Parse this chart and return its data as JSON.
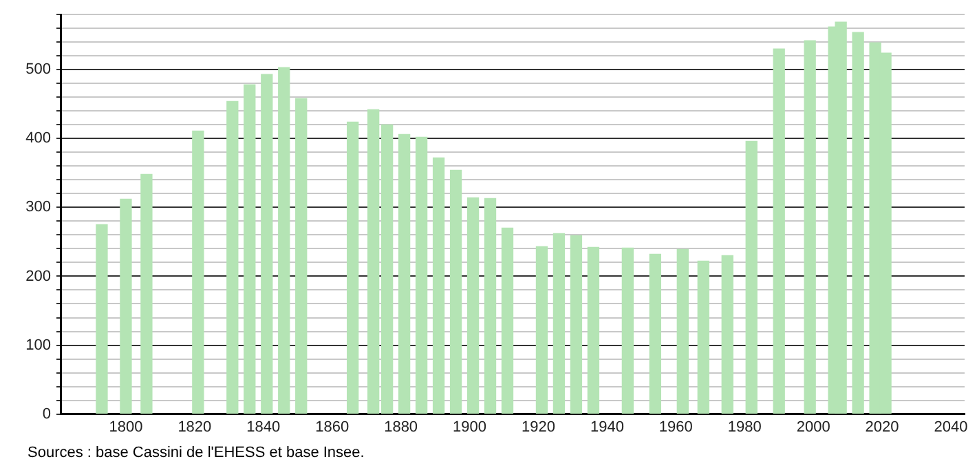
{
  "chart_data": {
    "type": "bar",
    "x": [
      1793,
      1800,
      1806,
      1821,
      1831,
      1836,
      1841,
      1846,
      1851,
      1866,
      1872,
      1876,
      1881,
      1886,
      1891,
      1896,
      1901,
      1906,
      1911,
      1921,
      1926,
      1931,
      1936,
      1946,
      1954,
      1962,
      1968,
      1975,
      1982,
      1990,
      1999,
      2006,
      2008,
      2013,
      2018,
      2021
    ],
    "values": [
      275,
      312,
      348,
      411,
      454,
      478,
      493,
      503,
      458,
      424,
      442,
      420,
      406,
      402,
      372,
      354,
      314,
      313,
      270,
      243,
      262,
      259,
      242,
      241,
      232,
      239,
      222,
      230,
      396,
      530,
      542,
      562,
      569,
      554,
      539,
      524
    ],
    "color": "#b4e4b4",
    "xlim": [
      1781,
      2044
    ],
    "xticks": [
      1800,
      1820,
      1840,
      1860,
      1880,
      1900,
      1920,
      1940,
      1960,
      1980,
      2000,
      2020,
      2040
    ],
    "ylim": [
      0,
      580
    ],
    "yticks": [
      0,
      {
        "value": 20,
        "label": null
      },
      {
        "value": 40,
        "label": null
      },
      {
        "value": 60,
        "label": null
      },
      {
        "value": 80,
        "label": null
      },
      100,
      {
        "value": 120,
        "label": null
      },
      {
        "value": 140,
        "label": null
      },
      {
        "value": 160,
        "label": null
      },
      {
        "value": 180,
        "label": null
      },
      200,
      {
        "value": 220,
        "label": null
      },
      {
        "value": 240,
        "label": null
      },
      {
        "value": 260,
        "label": null
      },
      {
        "value": 280,
        "label": null
      },
      300,
      {
        "value": 320,
        "label": null
      },
      {
        "value": 340,
        "label": null
      },
      {
        "value": 360,
        "label": null
      },
      {
        "value": 380,
        "label": null
      },
      400,
      {
        "value": 420,
        "label": null
      },
      {
        "value": 440,
        "label": null
      },
      {
        "value": 460,
        "label": null
      },
      {
        "value": 480,
        "label": null
      },
      500,
      {
        "value": 520,
        "label": null
      },
      {
        "value": 540,
        "label": null
      },
      {
        "value": 560,
        "label": null
      },
      {
        "value": 580,
        "label": null
      }
    ],
    "grid": "y",
    "annotations": [
      "Sources : base Cassini de l'EHESS et base Insee."
    ]
  }
}
